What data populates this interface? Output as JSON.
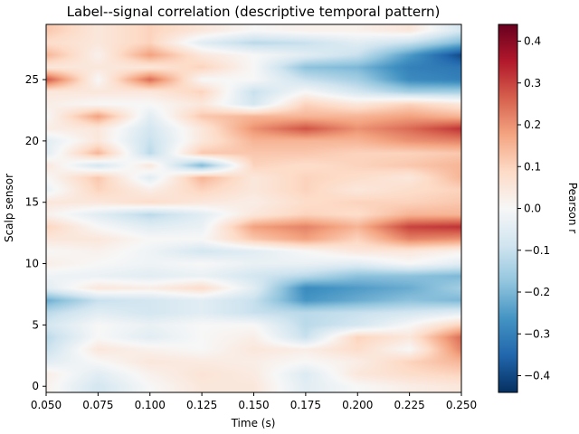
{
  "chart_data": {
    "type": "heatmap",
    "title": "Label--signal correlation (descriptive temporal pattern)",
    "xlabel": "Time (s)",
    "ylabel": "Scalp sensor",
    "colorbar_label": "Pearson r",
    "colormap": "RdBu_r",
    "xlim": [
      0.05,
      0.25
    ],
    "ylim": [
      -0.5,
      29.5
    ],
    "clim": [
      -0.44,
      0.44
    ],
    "x_ticks": [
      "0.050",
      "0.075",
      "0.100",
      "0.125",
      "0.150",
      "0.175",
      "0.200",
      "0.225",
      "0.250"
    ],
    "y_ticks": [
      "0",
      "5",
      "10",
      "15",
      "20",
      "25"
    ],
    "colorbar_ticks": [
      "−0.4",
      "−0.3",
      "−0.2",
      "−0.1",
      "0.0",
      "0.1",
      "0.2",
      "0.3",
      "0.4"
    ],
    "x_columns": [
      0.05,
      0.075,
      0.1,
      0.125,
      0.15,
      0.175,
      0.2,
      0.225,
      0.25
    ],
    "rows": [
      {
        "sensor": 0,
        "r": [
          0.02,
          -0.08,
          0.0,
          0.05,
          0.05,
          -0.05,
          0.0,
          0.03,
          0.05
        ]
      },
      {
        "sensor": 1,
        "r": [
          0.03,
          -0.05,
          0.02,
          0.06,
          0.04,
          -0.06,
          0.05,
          0.08,
          0.1
        ]
      },
      {
        "sensor": 2,
        "r": [
          -0.05,
          0.0,
          0.05,
          0.04,
          0.03,
          0.0,
          0.03,
          0.1,
          0.15
        ]
      },
      {
        "sensor": 3,
        "r": [
          -0.1,
          0.05,
          0.02,
          0.0,
          0.05,
          0.03,
          0.08,
          0.0,
          0.22
        ]
      },
      {
        "sensor": 4,
        "r": [
          -0.12,
          0.0,
          -0.05,
          0.0,
          0.03,
          -0.1,
          0.1,
          0.05,
          0.25
        ]
      },
      {
        "sensor": 5,
        "r": [
          -0.08,
          0.0,
          -0.03,
          0.0,
          0.0,
          -0.12,
          -0.08,
          0.0,
          0.1
        ]
      },
      {
        "sensor": 6,
        "r": [
          -0.12,
          -0.05,
          -0.08,
          -0.05,
          -0.1,
          -0.12,
          -0.1,
          -0.08,
          -0.05
        ]
      },
      {
        "sensor": 7,
        "r": [
          -0.22,
          -0.1,
          -0.08,
          -0.05,
          -0.1,
          -0.26,
          -0.22,
          -0.18,
          -0.2
        ]
      },
      {
        "sensor": 8,
        "r": [
          -0.05,
          0.05,
          0.03,
          0.08,
          -0.05,
          -0.28,
          -0.25,
          -0.22,
          -0.15
        ]
      },
      {
        "sensor": 9,
        "r": [
          -0.02,
          -0.03,
          -0.05,
          -0.03,
          -0.08,
          -0.12,
          -0.18,
          -0.18,
          -0.2
        ]
      },
      {
        "sensor": 10,
        "r": [
          0.03,
          0.0,
          -0.02,
          0.0,
          -0.03,
          -0.03,
          -0.05,
          0.0,
          -0.05
        ]
      },
      {
        "sensor": 11,
        "r": [
          0.0,
          0.02,
          -0.02,
          -0.08,
          -0.05,
          0.0,
          0.05,
          0.05,
          0.02
        ]
      },
      {
        "sensor": 12,
        "r": [
          0.05,
          0.05,
          0.0,
          0.0,
          0.12,
          0.18,
          0.1,
          0.22,
          0.2
        ]
      },
      {
        "sensor": 13,
        "r": [
          0.1,
          0.0,
          -0.05,
          -0.03,
          0.18,
          0.22,
          0.15,
          0.3,
          0.32
        ]
      },
      {
        "sensor": 14,
        "r": [
          0.02,
          -0.05,
          -0.12,
          -0.05,
          0.05,
          0.1,
          0.08,
          0.15,
          0.15
        ]
      },
      {
        "sensor": 15,
        "r": [
          0.05,
          0.05,
          0.08,
          0.05,
          0.03,
          0.08,
          0.1,
          0.1,
          0.12
        ]
      },
      {
        "sensor": 16,
        "r": [
          -0.03,
          0.1,
          0.03,
          0.1,
          0.05,
          0.1,
          0.05,
          0.08,
          0.1
        ]
      },
      {
        "sensor": 17,
        "r": [
          0.0,
          0.12,
          -0.05,
          0.15,
          0.05,
          0.1,
          0.08,
          0.05,
          0.15
        ]
      },
      {
        "sensor": 18,
        "r": [
          0.05,
          -0.08,
          0.05,
          -0.2,
          0.1,
          0.08,
          0.1,
          0.12,
          0.15
        ]
      },
      {
        "sensor": 19,
        "r": [
          -0.05,
          0.15,
          -0.12,
          0.12,
          0.12,
          0.12,
          0.1,
          0.1,
          0.12
        ]
      },
      {
        "sensor": 20,
        "r": [
          -0.05,
          0.05,
          -0.1,
          0.05,
          0.15,
          0.15,
          0.15,
          0.2,
          0.22
        ]
      },
      {
        "sensor": 21,
        "r": [
          0.03,
          0.05,
          -0.08,
          0.05,
          0.2,
          0.28,
          0.2,
          0.25,
          0.32
        ]
      },
      {
        "sensor": 22,
        "r": [
          0.0,
          0.18,
          -0.05,
          0.12,
          0.15,
          0.15,
          0.15,
          0.18,
          0.15
        ]
      },
      {
        "sensor": 23,
        "r": [
          0.03,
          0.0,
          0.0,
          0.05,
          -0.08,
          0.1,
          0.05,
          0.1,
          0.05
        ]
      },
      {
        "sensor": 24,
        "r": [
          0.05,
          0.05,
          0.05,
          0.1,
          -0.1,
          0.0,
          -0.08,
          -0.15,
          -0.15
        ]
      },
      {
        "sensor": 25,
        "r": [
          0.28,
          0.0,
          0.25,
          0.0,
          0.0,
          -0.1,
          -0.15,
          -0.28,
          -0.3
        ]
      },
      {
        "sensor": 26,
        "r": [
          0.05,
          0.05,
          0.05,
          0.1,
          0.0,
          -0.18,
          -0.2,
          -0.3,
          -0.32
        ]
      },
      {
        "sensor": 27,
        "r": [
          0.15,
          0.02,
          0.18,
          0.05,
          0.0,
          -0.05,
          -0.1,
          -0.25,
          -0.4
        ]
      },
      {
        "sensor": 28,
        "r": [
          0.08,
          0.05,
          0.1,
          -0.05,
          -0.12,
          -0.1,
          -0.05,
          -0.1,
          -0.2
        ]
      },
      {
        "sensor": 29,
        "r": [
          0.12,
          0.05,
          0.1,
          0.05,
          0.0,
          0.02,
          0.02,
          0.05,
          -0.08
        ]
      }
    ]
  }
}
